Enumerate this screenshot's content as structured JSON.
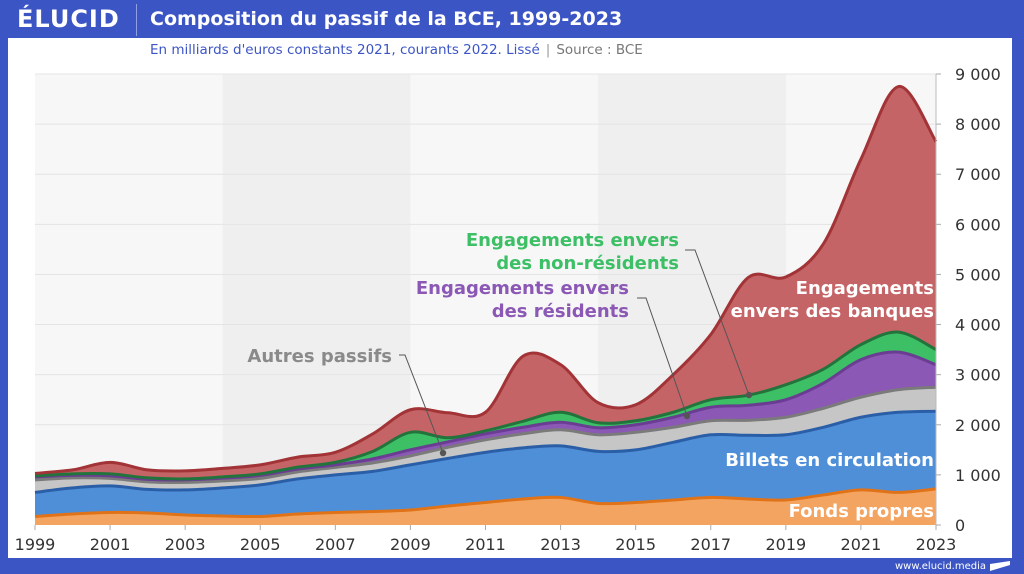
{
  "header": {
    "logo": "ÉLUCID",
    "title": "Composition du passif de la BCE, 1999-2023",
    "subtitle": "En milliards d'euros constants 2021, courants 2022. Lissé",
    "source": "Source : BCE"
  },
  "footer": {
    "url": "www.elucid.media"
  },
  "colors": {
    "fonds": "#f4a461",
    "fonds_line": "#e07318",
    "billets": "#4f8fd8",
    "billets_line": "#2a5fa8",
    "autres": "#c6c6c6",
    "autres_line": "#7a7a7a",
    "residents": "#8b58b5",
    "residents_line": "#6a3d93",
    "nonresidents": "#3dbf66",
    "nonresidents_line": "#23733c",
    "banques": "#c56466",
    "banques_line": "#a23336",
    "background_band": "#efefef",
    "plot_bg": "#f7f7f7",
    "brand": "#3c55c5"
  },
  "chart_data": {
    "type": "area",
    "stacked": true,
    "title": "Composition du passif de la BCE, 1999-2023",
    "subtitle": "En milliards d'euros constants 2021, courants 2022. Lissé",
    "xlabel": "",
    "ylabel": "",
    "x": [
      1999,
      2000,
      2001,
      2002,
      2003,
      2004,
      2005,
      2006,
      2007,
      2008,
      2009,
      2010,
      2011,
      2012,
      2013,
      2014,
      2015,
      2016,
      2017,
      2018,
      2019,
      2020,
      2021,
      2022,
      2023
    ],
    "x_ticks": [
      "1999",
      "2001",
      "2003",
      "2005",
      "2007",
      "2009",
      "2011",
      "2013",
      "2015",
      "2017",
      "2019",
      "2021",
      "2023"
    ],
    "y_ticks": [
      "0",
      "1 000",
      "2 000",
      "3 000",
      "4 000",
      "5 000",
      "6 000",
      "7 000",
      "8 000",
      "9 000"
    ],
    "ylim": [
      0,
      9000
    ],
    "xlim": [
      1999,
      2023
    ],
    "grid": true,
    "y_axis_side": "right",
    "series": [
      {
        "name": "Fonds propres",
        "key": "fonds",
        "values": [
          170,
          220,
          250,
          240,
          200,
          180,
          170,
          220,
          250,
          270,
          300,
          380,
          450,
          520,
          550,
          430,
          450,
          500,
          550,
          520,
          500,
          600,
          700,
          650,
          720
        ]
      },
      {
        "name": "Billets en circulation",
        "key": "billets",
        "values": [
          480,
          520,
          530,
          470,
          500,
          560,
          630,
          700,
          750,
          800,
          900,
          950,
          1000,
          1020,
          1030,
          1040,
          1050,
          1150,
          1250,
          1270,
          1300,
          1350,
          1450,
          1600,
          1550
        ]
      },
      {
        "name": "Autres passifs",
        "key": "autres",
        "values": [
          250,
          200,
          150,
          150,
          150,
          140,
          130,
          140,
          150,
          170,
          180,
          220,
          250,
          280,
          320,
          330,
          350,
          300,
          280,
          300,
          350,
          380,
          400,
          450,
          480
        ]
      },
      {
        "name": "Engagements envers des résidents",
        "key": "residents",
        "values": [
          60,
          50,
          50,
          50,
          50,
          55,
          60,
          55,
          50,
          80,
          120,
          110,
          120,
          130,
          150,
          140,
          150,
          200,
          270,
          300,
          350,
          500,
          750,
          750,
          450
        ]
      },
      {
        "name": "Engagements envers des non-résidents",
        "key": "nonresidents",
        "values": [
          20,
          30,
          40,
          30,
          20,
          25,
          30,
          40,
          50,
          150,
          350,
          80,
          60,
          120,
          200,
          100,
          80,
          100,
          150,
          200,
          300,
          280,
          300,
          400,
          300
        ]
      },
      {
        "name": "Engagements envers des banques",
        "key": "banques",
        "values": [
          50,
          80,
          230,
          160,
          160,
          170,
          180,
          200,
          200,
          350,
          450,
          500,
          370,
          1300,
          950,
          400,
          320,
          750,
          1300,
          2350,
          2150,
          2500,
          3700,
          4900,
          4150
        ]
      }
    ],
    "annotations": [
      {
        "text": [
          "Engagements",
          "envers des banques"
        ],
        "series": "banques",
        "color": "#ffffff"
      },
      {
        "text": [
          "Engagements envers",
          "des non-résidents"
        ],
        "series": "nonresidents",
        "color": "#3dbf66"
      },
      {
        "text": [
          "Engagements envers",
          "des résidents"
        ],
        "series": "residents",
        "color": "#8b58b5"
      },
      {
        "text": [
          "Autres passifs"
        ],
        "series": "autres",
        "color": "#8a8a8a"
      },
      {
        "text": [
          "Billets en circulation"
        ],
        "series": "billets",
        "color": "#ffffff"
      },
      {
        "text": [
          "Fonds propres"
        ],
        "series": "fonds",
        "color": "#ffffff"
      }
    ],
    "background_bands": [
      [
        2004,
        2009
      ],
      [
        2014,
        2019
      ]
    ]
  }
}
